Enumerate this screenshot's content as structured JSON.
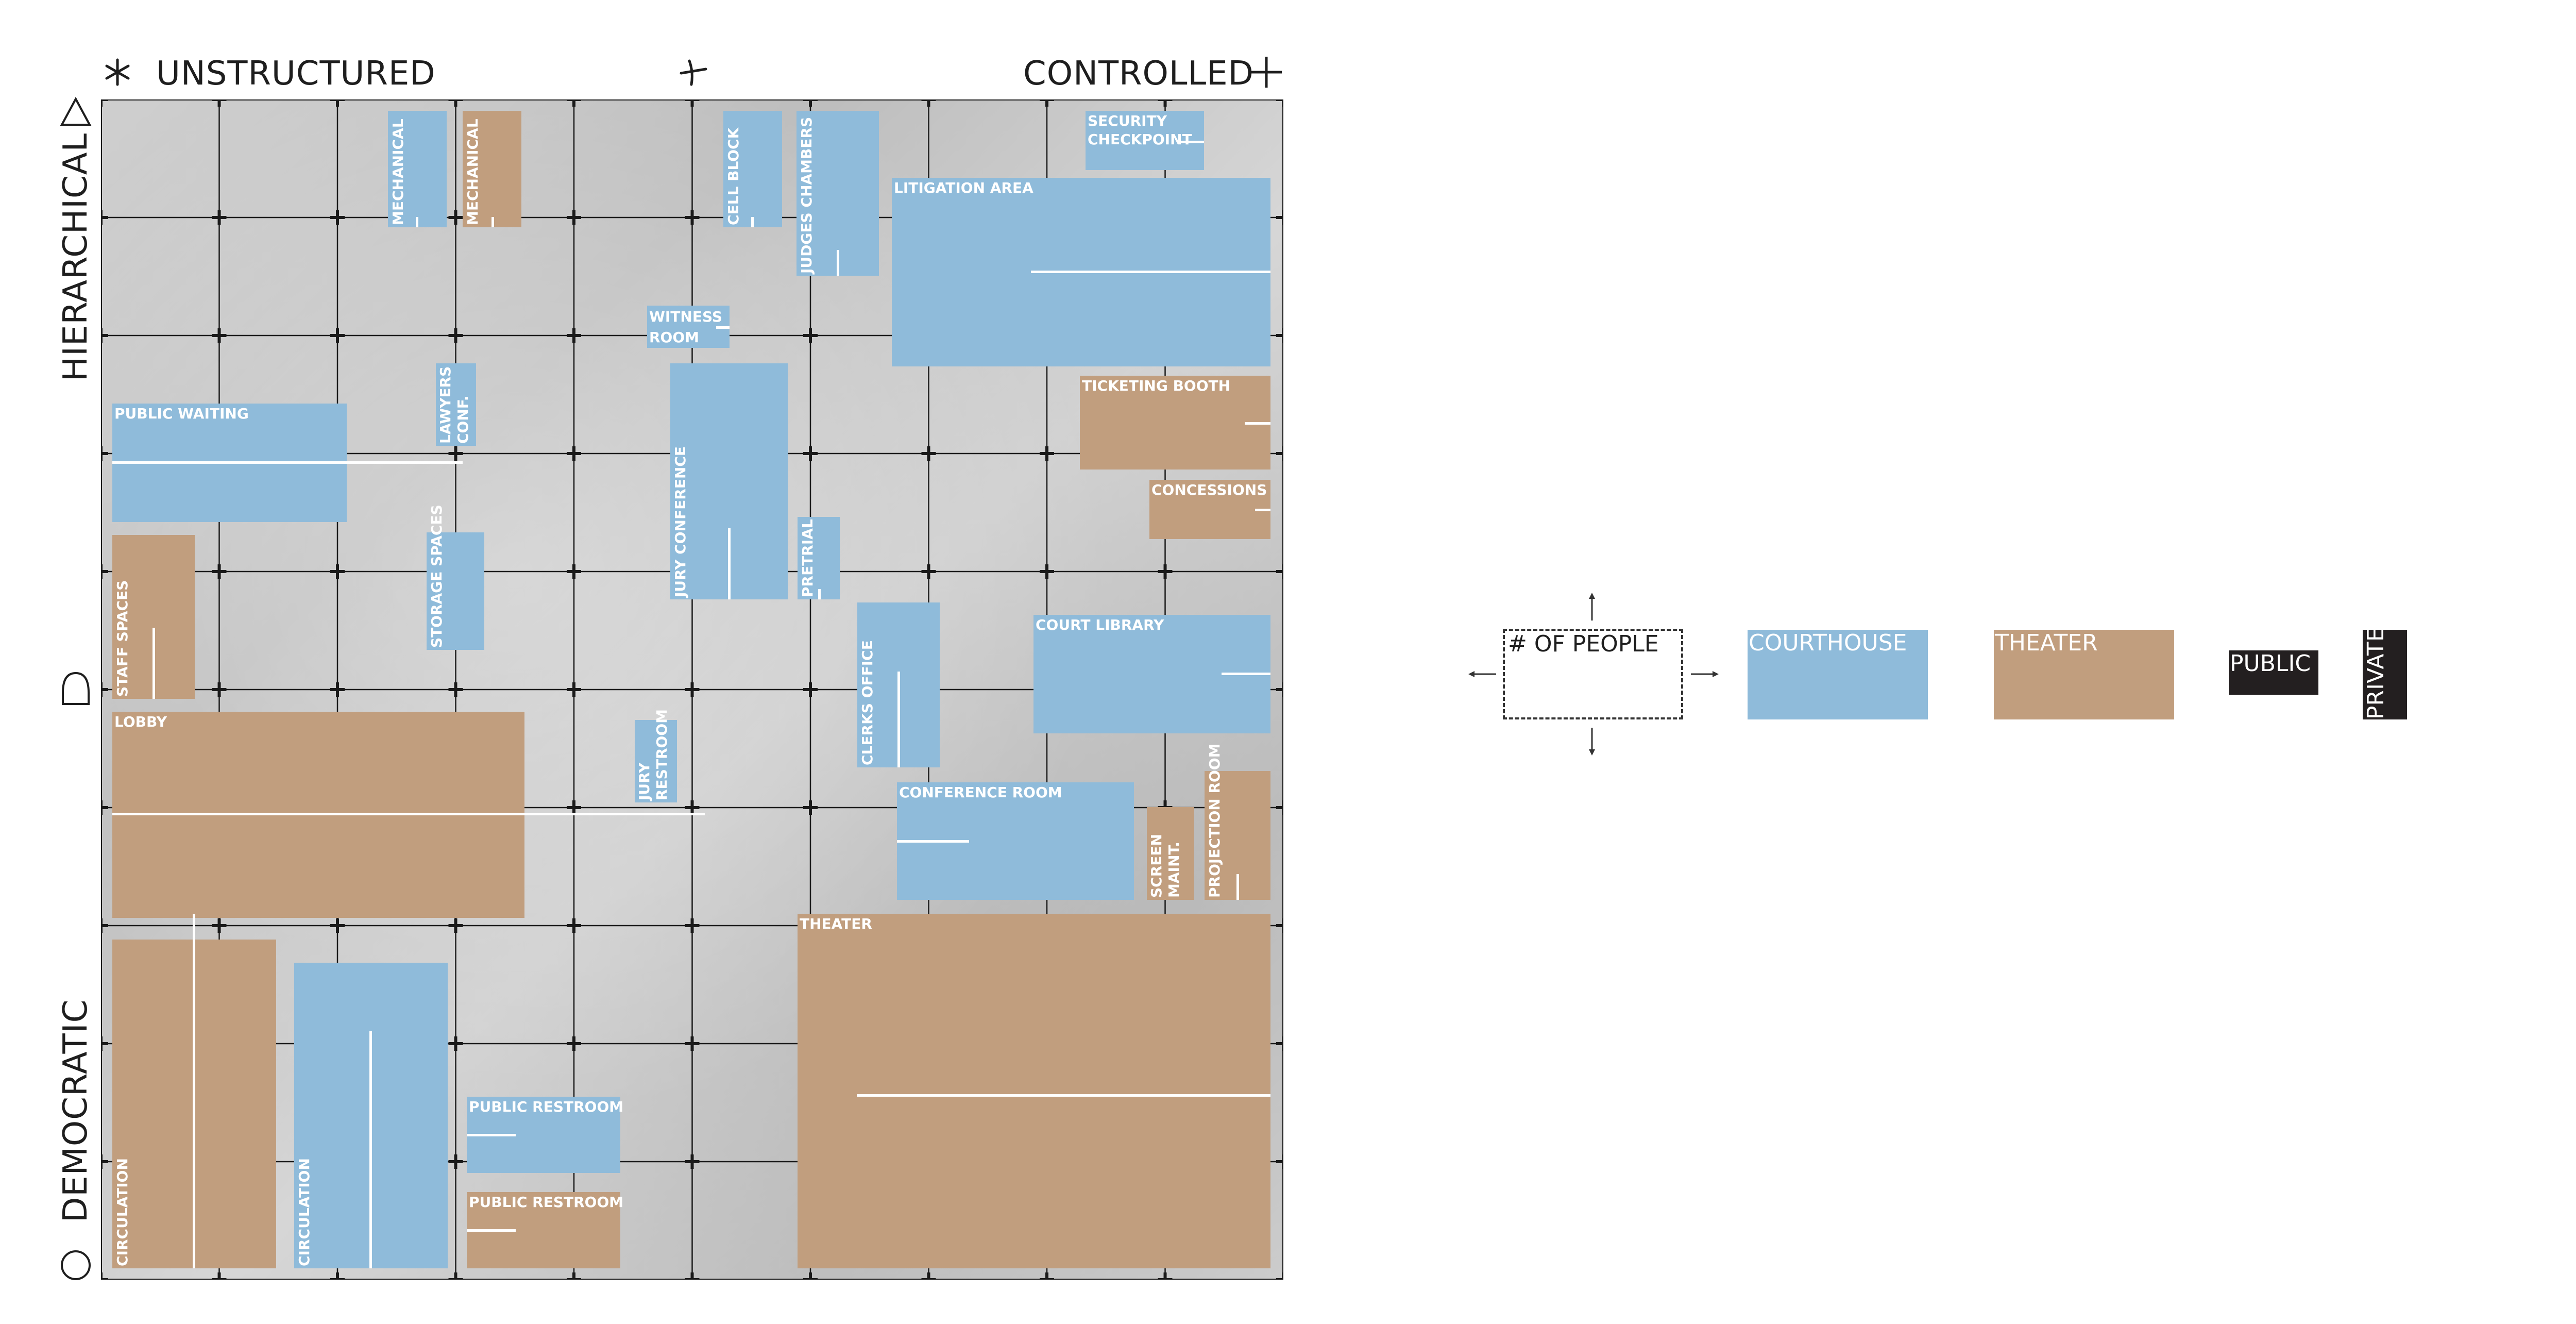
{
  "axes": {
    "top_left": "UNSTRUCTURED",
    "top_right": "CONTROLLED",
    "left_top": "HIERARCHICAL",
    "left_bottom": "DEMOCRATIC"
  },
  "rooms": [
    {
      "id": "mechanical-1",
      "label": "MECHANICAL",
      "type": "courthouse",
      "orient": "v"
    },
    {
      "id": "mechanical-2",
      "label": "MECHANICAL",
      "type": "theater",
      "orient": "v"
    },
    {
      "id": "cell-block",
      "label": "CELL BLOCK",
      "type": "courthouse",
      "orient": "v"
    },
    {
      "id": "judges-chambers",
      "label": "JUDGES CHAMBERS",
      "type": "courthouse",
      "orient": "v"
    },
    {
      "id": "security-checkpoint",
      "label": "SECURITY CHECKPOINT",
      "type": "courthouse",
      "orient": "h"
    },
    {
      "id": "litigation-area",
      "label": "LITIGATION AREA",
      "type": "courthouse",
      "orient": "h"
    },
    {
      "id": "witness-room",
      "label": "WITNESS ROOM",
      "type": "courthouse",
      "orient": "h"
    },
    {
      "id": "lawyers-conf",
      "label": "LAWYERS CONF.",
      "type": "courthouse",
      "orient": "v"
    },
    {
      "id": "public-waiting",
      "label": "PUBLIC WAITING",
      "type": "courthouse",
      "orient": "h"
    },
    {
      "id": "jury-conference",
      "label": "JURY CONFERENCE",
      "type": "courthouse",
      "orient": "v"
    },
    {
      "id": "ticketing-booth",
      "label": "TICKETING BOOTH",
      "type": "theater",
      "orient": "h"
    },
    {
      "id": "concessions",
      "label": "CONCESSIONS",
      "type": "theater",
      "orient": "h"
    },
    {
      "id": "pretrial",
      "label": "PRETRIAL",
      "type": "courthouse",
      "orient": "v"
    },
    {
      "id": "storage-spaces",
      "label": "STORAGE SPACES",
      "type": "courthouse",
      "orient": "v"
    },
    {
      "id": "staff-spaces",
      "label": "STAFF SPACES",
      "type": "theater",
      "orient": "v"
    },
    {
      "id": "court-library",
      "label": "COURT LIBRARY",
      "type": "courthouse",
      "orient": "h"
    },
    {
      "id": "clerks-office",
      "label": "CLERKS OFFICE",
      "type": "courthouse",
      "orient": "v"
    },
    {
      "id": "lobby",
      "label": "LOBBY",
      "type": "theater",
      "orient": "h"
    },
    {
      "id": "jury-restroom",
      "label": "JURY RESTROOM",
      "type": "courthouse",
      "orient": "v"
    },
    {
      "id": "conference-room",
      "label": "CONFERENCE ROOM",
      "type": "courthouse",
      "orient": "h"
    },
    {
      "id": "screen-maint",
      "label": "SCREEN MAINT.",
      "type": "theater",
      "orient": "v"
    },
    {
      "id": "projection-room",
      "label": "PROJECTION ROOM",
      "type": "theater",
      "orient": "v"
    },
    {
      "id": "theater",
      "label": "THEATER",
      "type": "theater",
      "orient": "h"
    },
    {
      "id": "circulation-1",
      "label": "CIRCULATION",
      "type": "theater",
      "orient": "v"
    },
    {
      "id": "circulation-2",
      "label": "CIRCULATION",
      "type": "courthouse",
      "orient": "v"
    },
    {
      "id": "public-restroom-1",
      "label": "PUBLIC RESTROOM",
      "type": "courthouse",
      "orient": "h"
    },
    {
      "id": "public-restroom-2",
      "label": "PUBLIC RESTROOM",
      "type": "theater",
      "orient": "h"
    }
  ],
  "legend": {
    "people": "# OF PEOPLE",
    "courthouse": "COURTHOUSE",
    "theater": "THEATER",
    "public": "PUBLIC",
    "private": "PRIVATE"
  },
  "colors": {
    "courthouse": "#8fbbda",
    "theater": "#c19e7e",
    "public": "#231f20",
    "private": "#231f20",
    "grid_line": "#1a1a1a"
  }
}
